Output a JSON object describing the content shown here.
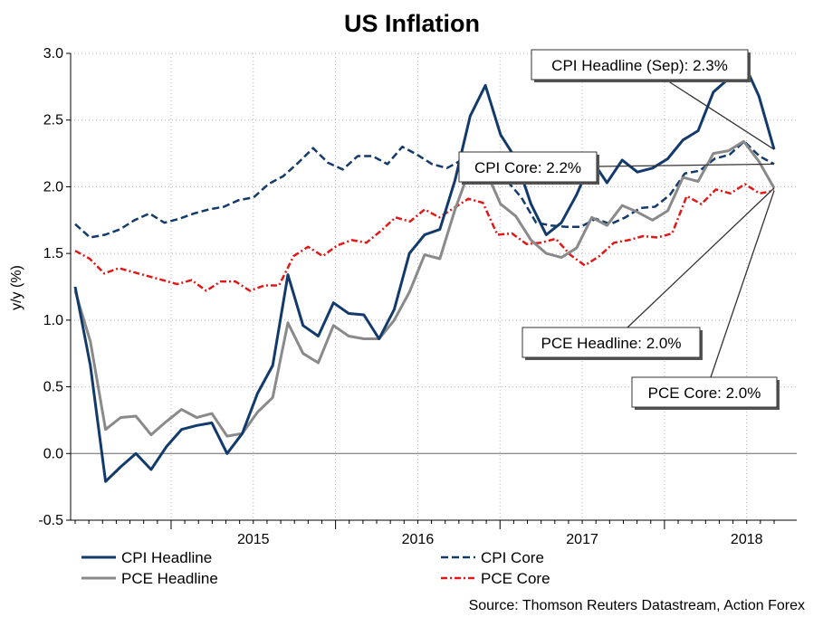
{
  "chart_data": {
    "type": "line",
    "title": "US Inflation",
    "ylabel": "y/y (%)",
    "xlabel": "",
    "ylim": [
      -0.5,
      3.0
    ],
    "yticks": [
      3.0,
      2.5,
      2.0,
      1.5,
      1.0,
      0.5,
      0.0,
      -0.5
    ],
    "ytick_labels": [
      "3.0",
      "2.5",
      "2.0",
      "1.5",
      "1.0",
      "0.5",
      "0.0",
      "-0.5"
    ],
    "x_start": "2014-06",
    "x_end": "2018-09",
    "year_labels": [
      "2015",
      "2016",
      "2017",
      "2018"
    ],
    "grid": true,
    "series": [
      {
        "name": "CPI Headline",
        "color": "#123a6a",
        "dash": "solid",
        "values": [
          1.25,
          0.66,
          -0.21,
          -0.1,
          0.0,
          -0.12,
          0.05,
          0.18,
          0.21,
          0.23,
          0.0,
          0.15,
          0.45,
          0.66,
          1.34,
          0.96,
          0.88,
          1.13,
          1.05,
          1.04,
          0.86,
          1.08,
          1.5,
          1.64,
          1.68,
          2.05,
          2.53,
          2.76,
          2.39,
          2.21,
          1.87,
          1.64,
          1.73,
          1.94,
          2.2,
          2.03,
          2.2,
          2.11,
          2.14,
          2.21,
          2.35,
          2.42,
          2.71,
          2.81,
          2.93,
          2.68,
          2.28
        ]
      },
      {
        "name": "CPI Core",
        "color": "#123a6a",
        "dash": "dashed",
        "values": [
          1.72,
          1.62,
          1.64,
          1.68,
          1.75,
          1.8,
          1.73,
          1.76,
          1.8,
          1.83,
          1.85,
          1.9,
          1.92,
          2.02,
          2.08,
          2.18,
          2.29,
          2.18,
          2.13,
          2.23,
          2.23,
          2.17,
          2.3,
          2.24,
          2.17,
          2.14,
          2.2,
          2.22,
          2.22,
          2.05,
          1.92,
          1.73,
          1.71,
          1.7,
          1.7,
          1.76,
          1.72,
          1.77,
          1.84,
          1.85,
          1.94,
          2.1,
          2.12,
          2.21,
          2.24,
          2.34,
          2.23,
          2.17
        ]
      },
      {
        "name": "PCE Headline",
        "color": "#8a8a8a",
        "dash": "solid",
        "values": [
          1.22,
          0.84,
          0.18,
          0.27,
          0.28,
          0.14,
          0.24,
          0.33,
          0.27,
          0.3,
          0.13,
          0.15,
          0.31,
          0.42,
          0.98,
          0.75,
          0.68,
          0.96,
          0.88,
          0.86,
          0.86,
          1.0,
          1.21,
          1.49,
          1.46,
          1.83,
          2.14,
          2.13,
          1.87,
          1.78,
          1.6,
          1.5,
          1.47,
          1.54,
          1.77,
          1.71,
          1.86,
          1.81,
          1.75,
          1.82,
          2.07,
          2.04,
          2.25,
          2.27,
          2.34,
          2.19,
          1.99
        ]
      },
      {
        "name": "PCE Core",
        "color": "#e01818",
        "dash": "dashdot",
        "values": [
          1.52,
          1.46,
          1.35,
          1.39,
          1.36,
          1.33,
          1.3,
          1.27,
          1.3,
          1.22,
          1.29,
          1.29,
          1.22,
          1.26,
          1.26,
          1.48,
          1.55,
          1.48,
          1.56,
          1.6,
          1.58,
          1.67,
          1.77,
          1.74,
          1.83,
          1.77,
          1.84,
          1.91,
          1.88,
          1.64,
          1.65,
          1.57,
          1.58,
          1.61,
          1.49,
          1.41,
          1.48,
          1.58,
          1.6,
          1.63,
          1.62,
          1.65,
          1.93,
          1.87,
          1.98,
          1.95,
          2.02,
          1.95,
          1.97
        ]
      }
    ],
    "annotations": [
      {
        "text": "CPI Headline (Sep): 2.3%",
        "series": "CPI Headline"
      },
      {
        "text": "CPI Core: 2.2%",
        "series": "CPI Core"
      },
      {
        "text": "PCE Headline: 2.0%",
        "series": "PCE Headline"
      },
      {
        "text": "PCE Core: 2.0%",
        "series": "PCE Core"
      }
    ],
    "source": "Source: Thomson Reuters Datastream, Action Forex"
  }
}
